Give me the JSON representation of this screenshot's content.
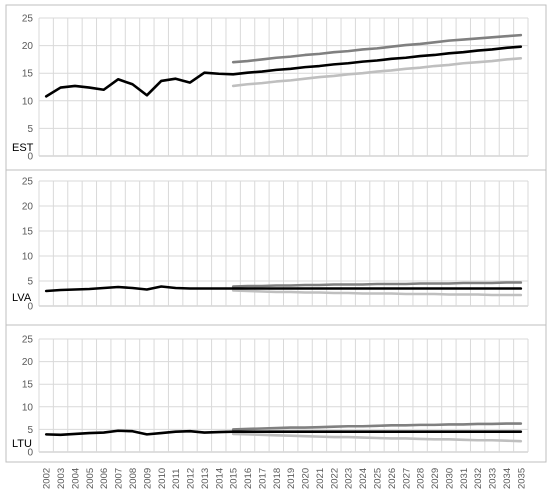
{
  "chart_data": {
    "type": "line",
    "x": [
      "2002",
      "2003",
      "2004",
      "2005",
      "2006",
      "2007",
      "2008",
      "2009",
      "2010",
      "2011",
      "2012",
      "2013",
      "2014",
      "2015",
      "2016",
      "2017",
      "2018",
      "2019",
      "2020",
      "2021",
      "2022",
      "2023",
      "2024",
      "2025",
      "2026",
      "2027",
      "2028",
      "2029",
      "2030",
      "2031",
      "2032",
      "2033",
      "2034",
      "2035"
    ],
    "ylim": [
      0,
      25
    ],
    "yticks": [
      0,
      5,
      10,
      15,
      20,
      25
    ],
    "grid": true,
    "colors": {
      "history": "#000000",
      "high": "#808080",
      "mid": "#000000",
      "low": "#bfbfbf",
      "grid": "#d9d9d9",
      "axis": "#bfbfbf",
      "tick_text": "#595959"
    },
    "panels": [
      {
        "label": "EST",
        "series": [
          {
            "values": [
              10.8,
              12.4,
              12.7,
              12.4,
              12.0,
              13.9,
              13.0,
              11.0,
              13.6,
              14.0,
              13.3,
              15.1,
              14.9,
              14.8,
              15.1,
              15.3,
              15.6,
              15.8,
              16.1,
              16.3,
              16.6,
              16.8,
              17.1,
              17.3,
              17.6,
              17.8,
              18.1,
              18.3,
              18.6,
              18.8,
              19.1,
              19.3,
              19.6,
              19.8
            ]
          },
          {
            "values": [
              null,
              null,
              null,
              null,
              null,
              null,
              null,
              null,
              null,
              null,
              null,
              null,
              null,
              17.0,
              17.2,
              17.5,
              17.8,
              18.0,
              18.3,
              18.5,
              18.8,
              19.0,
              19.3,
              19.5,
              19.8,
              20.1,
              20.3,
              20.6,
              20.9,
              21.1,
              21.3,
              21.5,
              21.7,
              21.9
            ]
          },
          {
            "values": [
              null,
              null,
              null,
              null,
              null,
              null,
              null,
              null,
              null,
              null,
              null,
              null,
              null,
              12.7,
              13.0,
              13.2,
              13.5,
              13.7,
              14.0,
              14.3,
              14.5,
              14.8,
              15.0,
              15.3,
              15.5,
              15.8,
              16.0,
              16.3,
              16.5,
              16.8,
              17.0,
              17.2,
              17.5,
              17.7
            ]
          }
        ]
      },
      {
        "label": "LVA",
        "series": [
          {
            "values": [
              3.0,
              3.2,
              3.3,
              3.4,
              3.6,
              3.8,
              3.6,
              3.3,
              3.9,
              3.6,
              3.5,
              3.5,
              3.5,
              3.5,
              3.5,
              3.5,
              3.5,
              3.5,
              3.5,
              3.5,
              3.5,
              3.5,
              3.5,
              3.5,
              3.5,
              3.5,
              3.5,
              3.5,
              3.5,
              3.5,
              3.5,
              3.5,
              3.5,
              3.5
            ]
          },
          {
            "values": [
              null,
              null,
              null,
              null,
              null,
              null,
              null,
              null,
              null,
              null,
              null,
              null,
              null,
              3.9,
              4.0,
              4.0,
              4.1,
              4.1,
              4.2,
              4.2,
              4.3,
              4.3,
              4.3,
              4.4,
              4.4,
              4.4,
              4.5,
              4.5,
              4.5,
              4.6,
              4.6,
              4.6,
              4.7,
              4.7
            ]
          },
          {
            "values": [
              null,
              null,
              null,
              null,
              null,
              null,
              null,
              null,
              null,
              null,
              null,
              null,
              null,
              3.1,
              3.0,
              2.9,
              2.8,
              2.8,
              2.7,
              2.7,
              2.6,
              2.6,
              2.5,
              2.5,
              2.5,
              2.4,
              2.4,
              2.4,
              2.3,
              2.3,
              2.3,
              2.2,
              2.2,
              2.2
            ]
          }
        ]
      },
      {
        "label": "LTU",
        "series": [
          {
            "values": [
              3.9,
              3.8,
              4.0,
              4.2,
              4.3,
              4.7,
              4.6,
              3.9,
              4.2,
              4.5,
              4.6,
              4.3,
              4.4,
              4.5,
              4.5,
              4.5,
              4.5,
              4.5,
              4.5,
              4.5,
              4.5,
              4.5,
              4.5,
              4.5,
              4.5,
              4.5,
              4.5,
              4.5,
              4.5,
              4.5,
              4.5,
              4.5,
              4.5,
              4.5
            ]
          },
          {
            "values": [
              null,
              null,
              null,
              null,
              null,
              null,
              null,
              null,
              null,
              null,
              null,
              null,
              null,
              5.0,
              5.1,
              5.2,
              5.3,
              5.4,
              5.4,
              5.5,
              5.6,
              5.7,
              5.7,
              5.8,
              5.9,
              5.9,
              6.0,
              6.0,
              6.1,
              6.1,
              6.2,
              6.2,
              6.3,
              6.3
            ]
          },
          {
            "values": [
              null,
              null,
              null,
              null,
              null,
              null,
              null,
              null,
              null,
              null,
              null,
              null,
              null,
              4.0,
              3.9,
              3.8,
              3.7,
              3.6,
              3.5,
              3.4,
              3.3,
              3.3,
              3.2,
              3.1,
              3.0,
              3.0,
              2.9,
              2.8,
              2.8,
              2.7,
              2.6,
              2.6,
              2.5,
              2.4
            ]
          }
        ]
      }
    ]
  }
}
